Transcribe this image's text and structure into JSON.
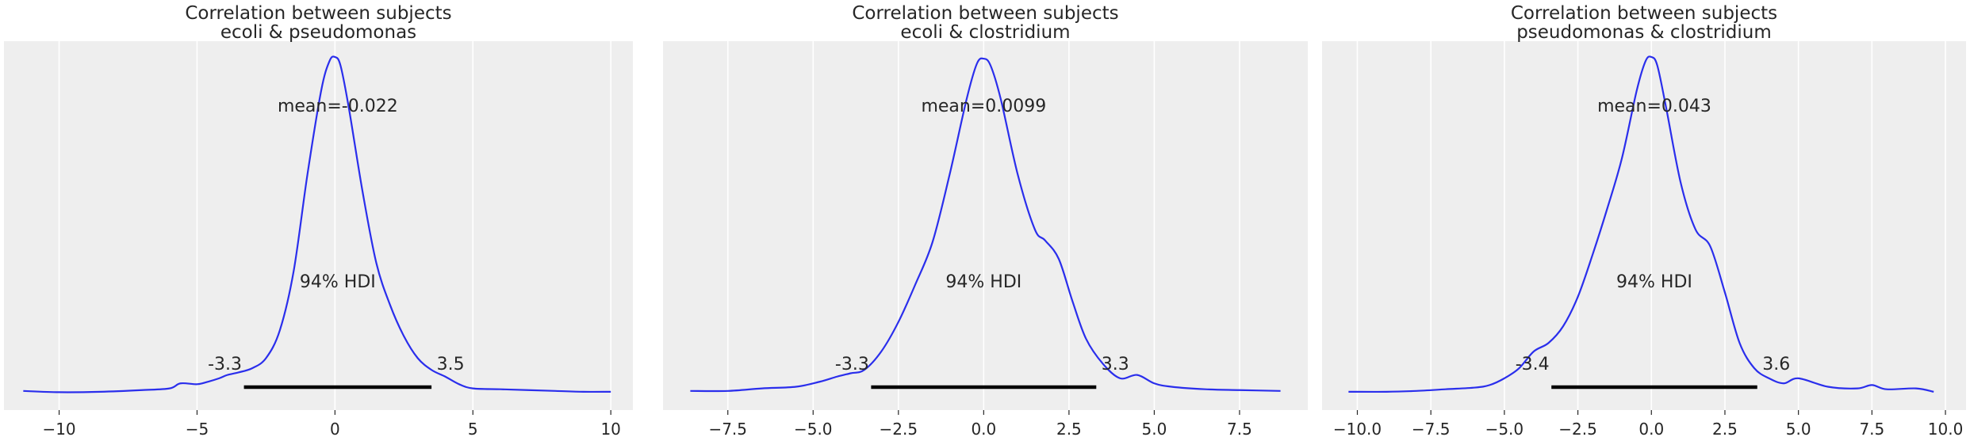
{
  "chart_data": [
    {
      "type": "line",
      "title": [
        "Correlation between subjects",
        "ecoli & pseudomonas"
      ],
      "xlim": [
        -12,
        10.8
      ],
      "xticks": [
        -10,
        -5,
        0,
        5,
        10
      ],
      "xtick_labels": [
        "−10",
        "−5",
        "0",
        "5",
        "10"
      ],
      "grid": true,
      "mean_label": "mean=-0.022",
      "hdi_label": "94% HDI",
      "hdi": [
        -3.3,
        3.5
      ],
      "hdi_low_label": "-3.3",
      "hdi_high_label": "3.5",
      "series": [
        {
          "x": [
            -11.3,
            -10,
            -8.5,
            -7,
            -6,
            -5.6,
            -5,
            -4.6,
            -4.2,
            -3.9,
            -3.5,
            -3,
            -2.5,
            -2,
            -1.5,
            -1,
            -0.5,
            -0.2,
            0,
            0.2,
            0.5,
            1,
            1.5,
            2,
            2.5,
            3,
            3.5,
            4,
            4.5,
            5,
            6,
            7,
            8,
            9,
            10
          ],
          "y": [
            0.003,
            0.0015,
            0.002,
            0.004,
            0.006,
            0.012,
            0.011,
            0.014,
            0.018,
            0.022,
            0.025,
            0.03,
            0.042,
            0.075,
            0.145,
            0.26,
            0.36,
            0.395,
            0.4,
            0.39,
            0.34,
            0.24,
            0.155,
            0.105,
            0.068,
            0.042,
            0.028,
            0.02,
            0.011,
            0.006,
            0.005,
            0.004,
            0.003,
            0.002,
            0.002
          ],
          "color": "#2a2eec"
        }
      ]
    },
    {
      "type": "line",
      "title": [
        "Correlation between subjects",
        "ecoli & clostridium"
      ],
      "xlim": [
        -9.4,
        9.5
      ],
      "xticks": [
        -7.5,
        -5,
        -2.5,
        0,
        2.5,
        5,
        7.5
      ],
      "xtick_labels": [
        "−7.5",
        "−5.0",
        "−2.5",
        "0.0",
        "2.5",
        "5.0",
        "7.5"
      ],
      "grid": true,
      "mean_label": "mean=0.0099",
      "hdi_label": "94% HDI",
      "hdi": [
        -3.3,
        3.3
      ],
      "hdi_low_label": "-3.3",
      "hdi_high_label": "3.3",
      "series": [
        {
          "x": [
            -8.6,
            -7.5,
            -6.5,
            -5.5,
            -4.8,
            -4.3,
            -3.9,
            -3.5,
            -3,
            -2.5,
            -2,
            -1.5,
            -1,
            -0.5,
            -0.2,
            0,
            0.2,
            0.5,
            1,
            1.5,
            1.8,
            2.2,
            2.6,
            3,
            3.5,
            4,
            4.5,
            5,
            5.5,
            6.5,
            7.5,
            8.7
          ],
          "y": [
            0.003,
            0.003,
            0.006,
            0.008,
            0.014,
            0.02,
            0.024,
            0.028,
            0.05,
            0.085,
            0.13,
            0.18,
            0.26,
            0.35,
            0.392,
            0.398,
            0.39,
            0.35,
            0.26,
            0.195,
            0.182,
            0.16,
            0.11,
            0.065,
            0.035,
            0.018,
            0.022,
            0.012,
            0.008,
            0.005,
            0.004,
            0.003
          ],
          "color": "#2a2eec"
        }
      ]
    },
    {
      "type": "line",
      "title": [
        "Correlation between subjects",
        "pseudomonas & clostridium"
      ],
      "xlim": [
        -11.2,
        10.7
      ],
      "xticks": [
        -10,
        -7.5,
        -5,
        -2.5,
        0,
        2.5,
        5,
        7.5,
        10
      ],
      "xtick_labels": [
        "−10.0",
        "−7.5",
        "−5.0",
        "−2.5",
        "0.0",
        "2.5",
        "5.0",
        "7.5",
        "10.0"
      ],
      "grid": true,
      "mean_label": "mean=0.043",
      "hdi_label": "94% HDI",
      "hdi": [
        -3.4,
        3.6
      ],
      "hdi_low_label": "-3.4",
      "hdi_high_label": "3.6",
      "series": [
        {
          "x": [
            -10.3,
            -9,
            -8,
            -7,
            -6,
            -5.5,
            -5,
            -4.5,
            -4,
            -3.5,
            -3,
            -2.5,
            -2,
            -1.5,
            -1,
            -0.5,
            -0.2,
            0,
            0.2,
            0.5,
            1,
            1.5,
            2,
            2.5,
            3,
            3.5,
            4,
            4.5,
            5,
            6,
            7,
            7.5,
            8,
            9,
            9.6
          ],
          "y": [
            0.002,
            0.002,
            0.003,
            0.005,
            0.007,
            0.01,
            0.018,
            0.03,
            0.05,
            0.06,
            0.08,
            0.115,
            0.165,
            0.22,
            0.28,
            0.36,
            0.395,
            0.4,
            0.39,
            0.34,
            0.25,
            0.195,
            0.175,
            0.12,
            0.06,
            0.03,
            0.018,
            0.012,
            0.018,
            0.008,
            0.006,
            0.01,
            0.005,
            0.006,
            0.002
          ],
          "color": "#2a2eec"
        }
      ]
    }
  ]
}
